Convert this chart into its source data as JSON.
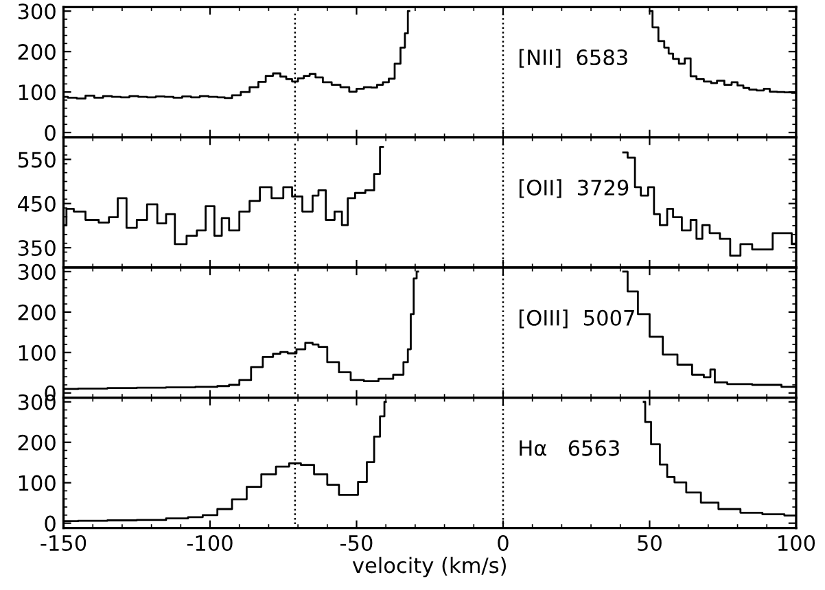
{
  "chart_data": [
    {
      "type": "step",
      "xlim": [
        -150,
        100
      ],
      "xticks": [
        -150,
        -100,
        -50,
        0,
        50,
        100
      ],
      "ylim": [
        -12,
        310
      ],
      "yticks": [
        0,
        100,
        200,
        300
      ],
      "tick_labels": "y",
      "annotations": [
        "[NII]  6583"
      ],
      "ref_lines": [
        {
          "axis": "x",
          "value": -71,
          "line_style": "dotted"
        },
        {
          "axis": "x",
          "value": 0,
          "line_style": "dotted"
        }
      ],
      "series": [
        {
          "color": "#000000",
          "x": [
            -150,
            -147,
            -144,
            -141,
            -138,
            -135,
            -132,
            -129,
            -126,
            -123,
            -120,
            -117,
            -114,
            -111,
            -108,
            -105,
            -102,
            -99,
            -96,
            -94,
            -91,
            -88,
            -85,
            -82,
            -80,
            -77,
            -75,
            -73,
            -71,
            -69,
            -67,
            -65,
            -63,
            -60,
            -57,
            -54,
            -51,
            -49,
            -46,
            -44,
            -42,
            -40,
            -38,
            -36,
            -34,
            -33,
            -32,
            -10,
            50,
            52,
            54,
            56,
            57,
            59,
            61,
            63,
            65,
            67,
            70,
            72,
            74,
            77,
            79,
            81,
            83,
            85,
            88,
            90,
            92,
            95,
            97,
            100
          ],
          "values": [
            88,
            86,
            84,
            91,
            86,
            90,
            88,
            87,
            90,
            88,
            87,
            89,
            88,
            86,
            89,
            87,
            90,
            88,
            87,
            85,
            92,
            100,
            112,
            125,
            140,
            146,
            138,
            132,
            126,
            134,
            140,
            145,
            136,
            124,
            118,
            112,
            101,
            108,
            112,
            111,
            118,
            124,
            133,
            170,
            210,
            245,
            300,
            null,
            300,
            260,
            226,
            210,
            195,
            182,
            170,
            183,
            139,
            132,
            126,
            122,
            128,
            118,
            124,
            116,
            110,
            106,
            104,
            108,
            101,
            100,
            99,
            98
          ]
        }
      ]
    },
    {
      "type": "step",
      "xlim": [
        -150,
        100
      ],
      "xticks": [
        -150,
        -100,
        -50,
        0,
        50,
        100
      ],
      "ylim": [
        305,
        600
      ],
      "yticks": [
        350,
        450,
        550
      ],
      "tick_labels": "y",
      "annotations": [
        "[OII]  3729"
      ],
      "ref_lines": [
        {
          "axis": "x",
          "value": -71,
          "line_style": "dotted"
        },
        {
          "axis": "x",
          "value": 0,
          "line_style": "dotted"
        }
      ],
      "series": [
        {
          "color": "#000000",
          "x": [
            -150,
            -148,
            -145,
            -140,
            -136,
            -133,
            -130,
            -127,
            -123,
            -120,
            -116,
            -114,
            -110,
            -106,
            -103,
            -100,
            -97,
            -95,
            -92,
            -88,
            -85,
            -81,
            -77,
            -73,
            -71,
            -66,
            -64,
            -62,
            -59,
            -56,
            -54,
            -52,
            -49,
            -45,
            -43,
            -41,
            -39,
            -10,
            40,
            41,
            44,
            46,
            48,
            51,
            52,
            55,
            57,
            59,
            63,
            65,
            67,
            69,
            72,
            76,
            79,
            83,
            87,
            90,
            94,
            97,
            100
          ],
          "values": [
            401,
            438,
            432,
            413,
            407,
            419,
            462,
            395,
            413,
            448,
            405,
            426,
            358,
            377,
            389,
            444,
            377,
            417,
            389,
            432,
            456,
            487,
            462,
            487,
            466,
            432,
            468,
            480,
            413,
            432,
            401,
            462,
            474,
            480,
            517,
            578,
            null,
            null,
            null,
            566,
            554,
            487,
            468,
            487,
            426,
            401,
            438,
            419,
            389,
            413,
            370,
            401,
            383,
            370,
            332,
            358,
            346,
            346,
            383,
            383,
            358
          ]
        }
      ]
    },
    {
      "type": "step",
      "xlim": [
        -150,
        100
      ],
      "xticks": [
        -150,
        -100,
        -50,
        0,
        50,
        100
      ],
      "ylim": [
        -12,
        310
      ],
      "yticks": [
        0,
        100,
        200,
        300
      ],
      "tick_labels": "y",
      "annotations": [
        "[OIII]  5007"
      ],
      "ref_lines": [
        {
          "axis": "x",
          "value": -71,
          "line_style": "dotted"
        },
        {
          "axis": "x",
          "value": 0,
          "line_style": "dotted"
        }
      ],
      "series": [
        {
          "color": "#000000",
          "x": [
            -150,
            -140,
            -130,
            -120,
            -110,
            -100,
            -95,
            -92,
            -88,
            -84,
            -80,
            -77,
            -75,
            -72,
            -69,
            -66,
            -64,
            -62,
            -58,
            -54,
            -50,
            -45,
            -40,
            -35,
            -33,
            -32,
            -31,
            -30,
            -29,
            -10,
            41,
            44,
            48,
            52,
            57,
            62,
            67,
            70,
            71.5,
            73,
            80,
            90,
            100
          ],
          "values": [
            10,
            11,
            12,
            13,
            14,
            15,
            17,
            20,
            32,
            64,
            89,
            97,
            101,
            98,
            108,
            124,
            120,
            114,
            76,
            51,
            32,
            29,
            35,
            45,
            76,
            108,
            195,
            283,
            300,
            null,
            300,
            251,
            195,
            139,
            95,
            70,
            45,
            39,
            58,
            26,
            22,
            20,
            15
          ]
        }
      ]
    },
    {
      "type": "step",
      "xlim": [
        -150,
        100
      ],
      "xticks": [
        -150,
        -100,
        -50,
        0,
        50,
        100
      ],
      "ylim": [
        -12,
        310
      ],
      "yticks": [
        0,
        100,
        200,
        300
      ],
      "xlabel": "velocity (km/s)",
      "annotations": [
        "Hα   6563"
      ],
      "ref_lines": [
        {
          "axis": "x",
          "value": -71,
          "line_style": "dotted"
        },
        {
          "axis": "x",
          "value": 0,
          "line_style": "dotted"
        }
      ],
      "series": [
        {
          "color": "#000000",
          "x": [
            -150,
            -140,
            -130,
            -120,
            -110,
            -105,
            -100,
            -95,
            -90,
            -85,
            -80,
            -75,
            -71,
            -67,
            -62,
            -58,
            -54,
            -51,
            -48,
            -45,
            -43,
            -41,
            -40,
            -10,
            48,
            49,
            52,
            55,
            57,
            60,
            65,
            70,
            77,
            85,
            92,
            100
          ],
          "values": [
            5,
            6,
            7,
            8,
            12,
            15,
            20,
            35,
            59,
            90,
            121,
            140,
            148,
            144,
            121,
            95,
            70,
            70,
            102,
            151,
            214,
            264,
            300,
            null,
            300,
            250,
            195,
            145,
            114,
            101,
            76,
            51,
            35,
            26,
            22,
            19
          ]
        }
      ]
    }
  ]
}
